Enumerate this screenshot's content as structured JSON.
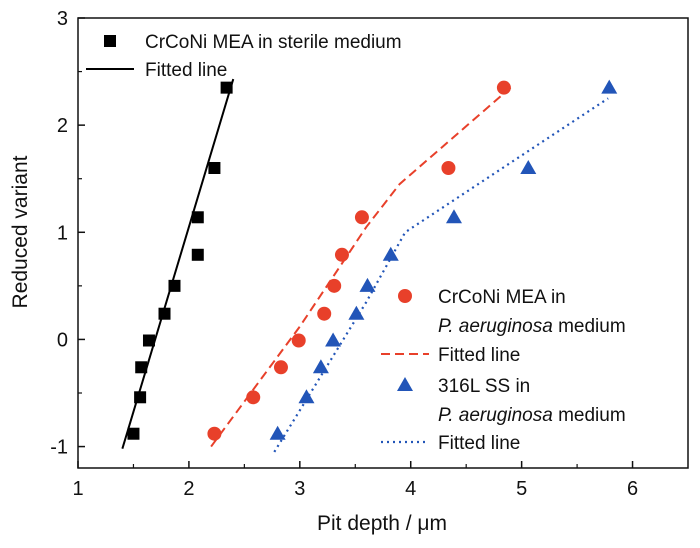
{
  "chart_data": {
    "type": "scatter",
    "title": "",
    "xlabel": "Pit depth / μm",
    "ylabel": "Reduced variant",
    "xlim": [
      1,
      6.5
    ],
    "ylim": [
      -1.2,
      3
    ],
    "xticks": [
      "1",
      "2",
      "3",
      "4",
      "5",
      "6"
    ],
    "yticks": [
      "-1",
      "0",
      "1",
      "2",
      "3"
    ],
    "grid": false,
    "series": [
      {
        "name": "CrCoNi MEA in sterile medium",
        "marker": "square",
        "color": "#000000",
        "x": [
          1.5,
          1.56,
          1.57,
          1.64,
          1.78,
          1.87,
          2.08,
          2.08,
          2.23,
          2.34
        ],
        "y": [
          -0.88,
          -0.54,
          -0.26,
          -0.01,
          0.24,
          0.5,
          0.79,
          1.14,
          1.6,
          2.35
        ]
      },
      {
        "name": "Fitted line",
        "style": "solid",
        "color": "#000000",
        "x": [
          1.4,
          2.4
        ],
        "y": [
          -1.02,
          2.43
        ]
      },
      {
        "name": "CrCoNi MEA in P. aeruginosa medium",
        "marker": "circle",
        "color": "#e8402a",
        "x": [
          2.23,
          2.58,
          2.83,
          2.99,
          3.22,
          3.31,
          3.38,
          3.56,
          4.34,
          4.84
        ],
        "y": [
          -0.88,
          -0.54,
          -0.26,
          -0.01,
          0.24,
          0.5,
          0.79,
          1.14,
          1.6,
          2.35
        ]
      },
      {
        "name": "Fitted line",
        "style": "dashed",
        "color": "#e8402a",
        "x": [
          2.2,
          3.0,
          3.6,
          3.9,
          4.9
        ],
        "y": [
          -1.0,
          0.12,
          1.05,
          1.45,
          2.35
        ]
      },
      {
        "name": "316L SS in P. aeruginosa medium",
        "marker": "triangle",
        "color": "#2255b8",
        "x": [
          2.8,
          3.06,
          3.19,
          3.3,
          3.51,
          3.61,
          3.82,
          4.39,
          5.06,
          5.79
        ],
        "y": [
          -0.88,
          -0.54,
          -0.26,
          -0.01,
          0.24,
          0.5,
          0.79,
          1.14,
          1.6,
          2.35
        ]
      },
      {
        "name": "Fitted line",
        "style": "dotted",
        "color": "#2255b8",
        "x": [
          2.77,
          3.6,
          3.95,
          5.78
        ],
        "y": [
          -1.05,
          0.35,
          1.0,
          2.25
        ]
      }
    ],
    "legends": [
      {
        "placement": "top-left",
        "entries": [
          {
            "label": "CrCoNi MEA in sterile medium",
            "symbol": "square",
            "color": "#000000"
          },
          {
            "label": "Fitted line",
            "symbol": "solid-line",
            "color": "#000000"
          }
        ]
      },
      {
        "placement": "bottom-right",
        "entries": [
          {
            "label_line1": "CrCoNi MEA in",
            "label_line2_italic": "P. aeruginosa",
            "label_line2_rest": " medium",
            "symbol": "circle",
            "color": "#e8402a"
          },
          {
            "label": "Fitted line",
            "symbol": "dashed-line",
            "color": "#e8402a"
          },
          {
            "label_line1": "316L SS in",
            "label_line2_italic": "P. aeruginosa",
            "label_line2_rest": " medium",
            "symbol": "triangle",
            "color": "#2255b8"
          },
          {
            "label": "Fitted line",
            "symbol": "dotted-line",
            "color": "#2255b8"
          }
        ]
      }
    ]
  }
}
